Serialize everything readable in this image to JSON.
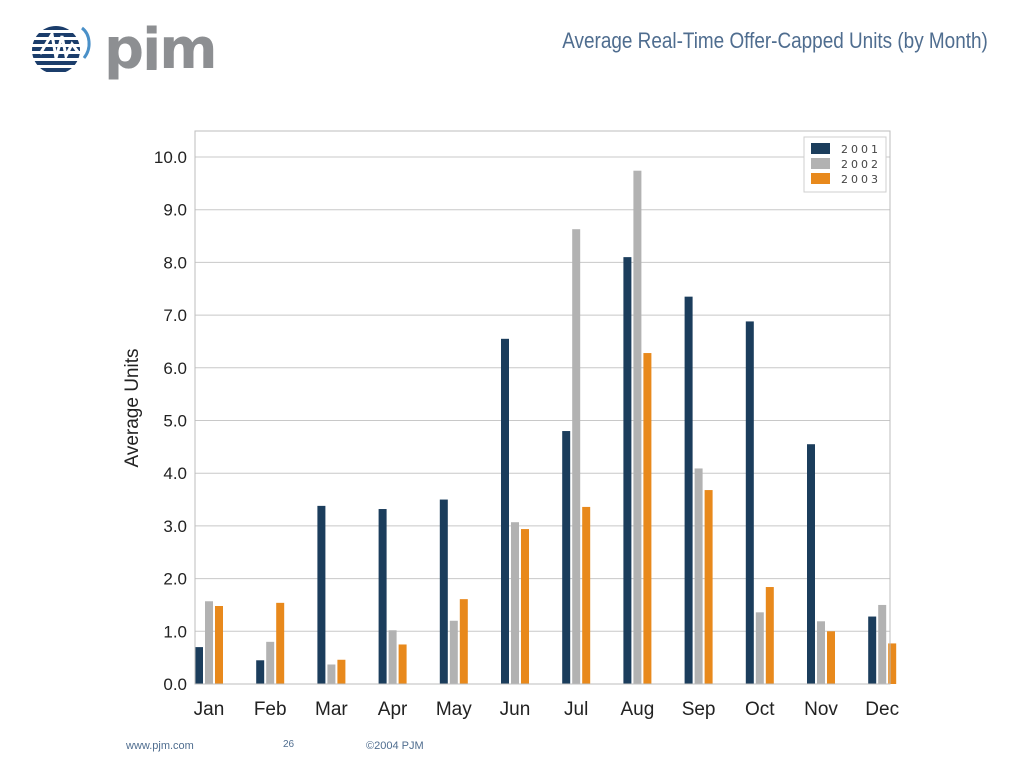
{
  "header": {
    "logo_text": "pjm",
    "title": "Average Real-Time Offer-Capped Units (by Month)"
  },
  "footer": {
    "url": "www.pjm.com",
    "page_number": "26",
    "copyright": "©2004 PJM"
  },
  "colors": {
    "series_2001": "#1b3d5c",
    "series_2002": "#b2b2b2",
    "series_2003": "#e8891c",
    "title": "#4f6d8f"
  },
  "chart_data": {
    "type": "bar",
    "title": "",
    "xlabel": "",
    "ylabel": "Average Units",
    "ylim": [
      0,
      10.5
    ],
    "yticks": [
      "0.0",
      "1.0",
      "2.0",
      "3.0",
      "4.0",
      "5.0",
      "6.0",
      "7.0",
      "8.0",
      "9.0",
      "10.0"
    ],
    "grid": true,
    "legend_position": "top-right",
    "categories": [
      "Jan",
      "Feb",
      "Mar",
      "Apr",
      "May",
      "Jun",
      "Jul",
      "Aug",
      "Sep",
      "Oct",
      "Nov",
      "Dec"
    ],
    "series": [
      {
        "name": "2001",
        "values": [
          0.7,
          0.45,
          3.38,
          3.32,
          3.5,
          6.55,
          4.8,
          8.1,
          7.35,
          6.88,
          4.55,
          1.28
        ]
      },
      {
        "name": "2002",
        "values": [
          1.57,
          0.8,
          0.37,
          1.02,
          1.2,
          3.07,
          8.63,
          9.74,
          4.09,
          1.36,
          1.19,
          1.5
        ]
      },
      {
        "name": "2003",
        "values": [
          1.48,
          1.54,
          0.46,
          0.75,
          1.61,
          2.94,
          3.36,
          6.28,
          3.68,
          1.84,
          1.0,
          0.77
        ]
      }
    ]
  }
}
